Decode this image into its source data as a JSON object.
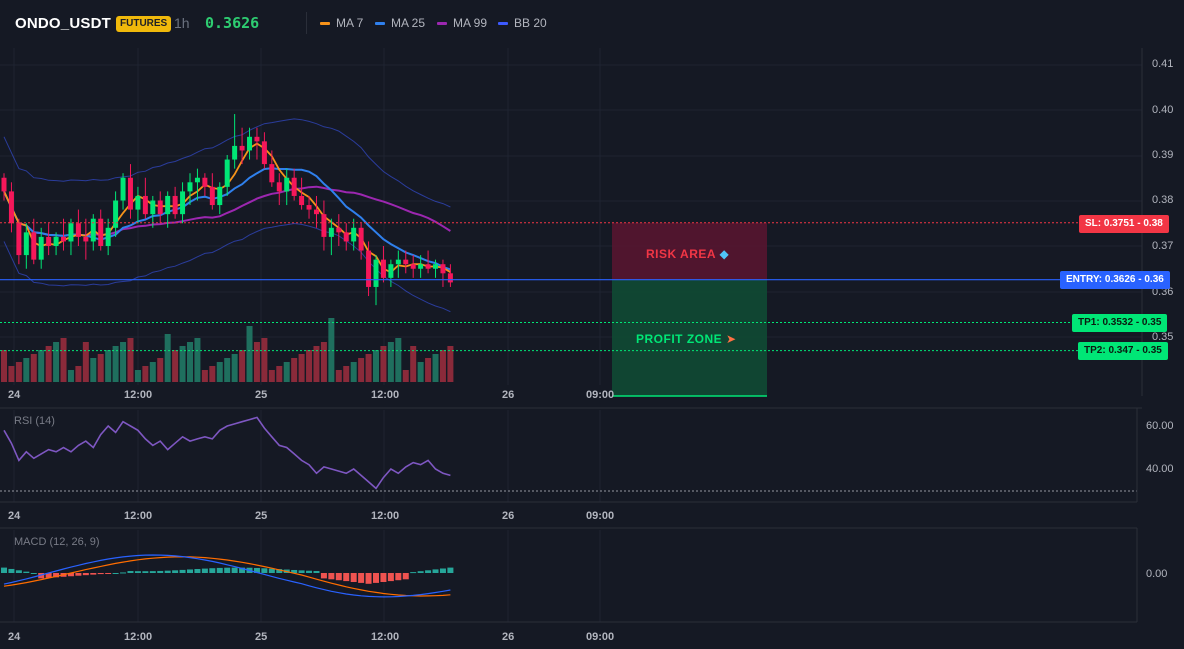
{
  "header": {
    "symbol": "ONDO_USDT",
    "badge": "FUTURES",
    "timeframe": "1h",
    "price": "0.3626",
    "indicators": [
      {
        "label": "MA 7",
        "color": "#f7931a"
      },
      {
        "label": "MA 25",
        "color": "#2f80ed"
      },
      {
        "label": "MA 99",
        "color": "#9c27b0"
      },
      {
        "label": "BB 20",
        "color": "#3d5afe"
      }
    ]
  },
  "price_axis": {
    "ticks": [
      "0.41",
      "0.40",
      "0.39",
      "0.38",
      "0.37",
      "0.36",
      "0.35"
    ]
  },
  "time_axis": {
    "ticks": [
      "24",
      "12:00",
      "25",
      "12:00",
      "26",
      "09:00"
    ]
  },
  "trade": {
    "sl_label": "SL: 0.3751 - 0.38",
    "entry_label": "ENTRY: 0.3626 - 0.36",
    "tp1_label": "TP1: 0.3532 - 0.35",
    "tp2_label": "TP2: 0.347 - 0.35",
    "risk_label": "RISK AREA",
    "profit_label": "PROFIT ZONE",
    "sl": 0.3751,
    "entry": 0.3626,
    "tp1": 0.3532,
    "tp2": 0.347,
    "colors": {
      "sl": "#f23645",
      "entry": "#2962ff",
      "tp": "#00e676"
    }
  },
  "rsi": {
    "title": "RSI (14)",
    "ticks": [
      "60.00",
      "40.00"
    ],
    "color": "#7e57c2"
  },
  "macd": {
    "title": "MACD (12, 26, 9)",
    "ticks": [
      "0.00"
    ],
    "colors": {
      "macd": "#2962ff",
      "signal": "#ff6d00",
      "hist_up": "#26a69a",
      "hist_down": "#ef5350"
    }
  }
}
